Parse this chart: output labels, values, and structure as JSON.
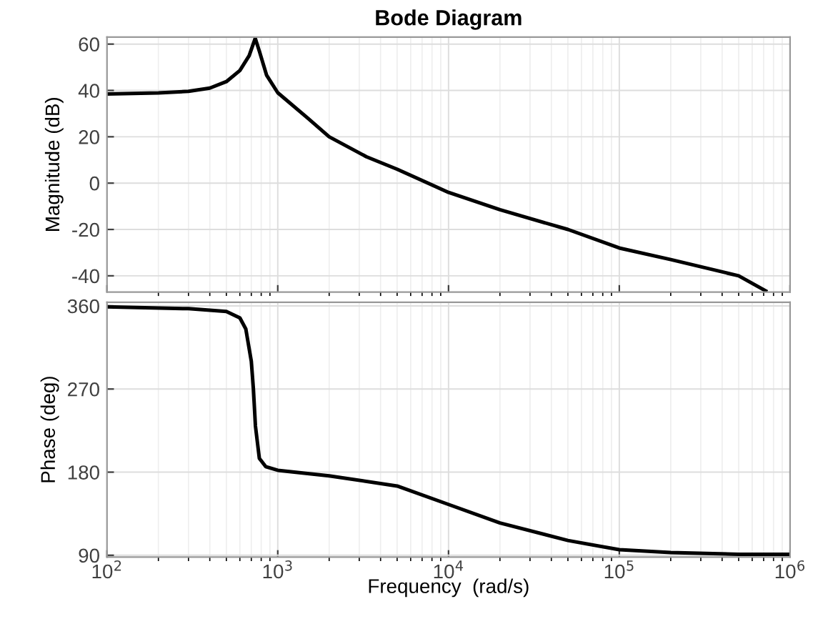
{
  "chart_data": [
    {
      "type": "line",
      "title": "Bode Diagram",
      "ylabel": "Magnitude (dB)",
      "log": "x",
      "grid": true,
      "tick_labels": "y",
      "xlim": [
        100,
        1000000
      ],
      "xticks": [
        {
          "value": 100,
          "label": null
        },
        {
          "value": 1000,
          "label": null
        },
        {
          "value": 10000,
          "label": null
        },
        {
          "value": 100000,
          "label": null
        },
        {
          "value": 1000000,
          "label": null
        }
      ],
      "ylim": [
        -47,
        63
      ],
      "yticks": [
        -40,
        -20,
        0,
        20,
        40,
        60
      ],
      "series": [
        {
          "color": "#000000",
          "x": [
            100,
            200,
            300,
            400,
            500,
            600,
            680,
            738,
            780,
            861,
            1000,
            1500,
            2000,
            3300,
            5000,
            10000,
            20000,
            50000,
            100000,
            200000,
            500000,
            720000
          ],
          "values": [
            38.5,
            38.9,
            39.6,
            41,
            43.8,
            48.6,
            55,
            62.5,
            57,
            46.5,
            39,
            28,
            20,
            11.4,
            6,
            -4,
            -11.5,
            -20,
            -28,
            -33,
            -40,
            -46.5
          ]
        }
      ]
    },
    {
      "type": "line",
      "ylabel": "Phase (deg)",
      "xlabel": "Frequency  (rad/s)",
      "log": "x",
      "grid": true,
      "xlim": [
        100,
        1000000
      ],
      "xticks": [
        {
          "value": 100,
          "label": "10$^{2}$"
        },
        {
          "value": 1000,
          "label": "10$^{3}$"
        },
        {
          "value": 10000,
          "label": "10$^{4}$"
        },
        {
          "value": 100000,
          "label": "10$^{5}$"
        },
        {
          "value": 1000000,
          "label": "10$^{6}$"
        }
      ],
      "ylim": [
        88,
        364
      ],
      "yticks": [
        90,
        180,
        270,
        360
      ],
      "series": [
        {
          "color": "#000000",
          "x": [
            100,
            300,
            500,
            600,
            650,
            700,
            720,
            740,
            780,
            850,
            1000,
            2000,
            5000,
            10000,
            20000,
            50000,
            100000,
            200000,
            500000,
            1000000
          ],
          "values": [
            359,
            357,
            354,
            347,
            335,
            300,
            270,
            230,
            195,
            186,
            182,
            176,
            165,
            145,
            125,
            106,
            96,
            93,
            91,
            91
          ]
        }
      ]
    }
  ]
}
